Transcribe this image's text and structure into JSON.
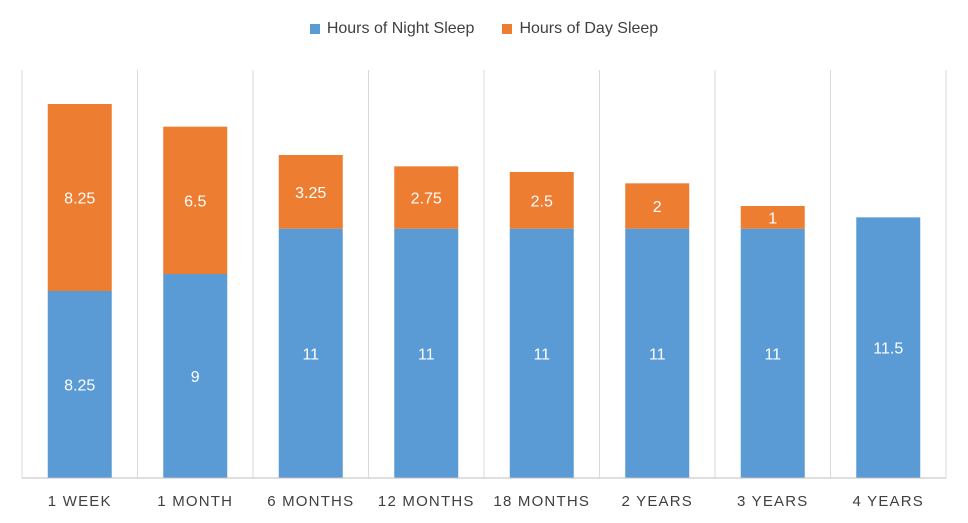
{
  "chart_data": {
    "type": "bar",
    "stacked": true,
    "title": "",
    "xlabel": "",
    "ylabel": "",
    "ylim": [
      0,
      18
    ],
    "legend_position": "top-center",
    "categories": [
      "1 WEEK",
      "1 MONTH",
      "6 MONTHS",
      "12 MONTHS",
      "18 MONTHS",
      "2 YEARS",
      "3 YEARS",
      "4 YEARS"
    ],
    "series": [
      {
        "name": "Hours of Night Sleep",
        "color": "#5B9BD5",
        "values": [
          8.25,
          9,
          11,
          11,
          11,
          11,
          11,
          11.5
        ],
        "labels": [
          "8.25",
          "9",
          "11",
          "11",
          "11",
          "11",
          "11",
          "11.5"
        ]
      },
      {
        "name": "Hours of Day Sleep",
        "color": "#ED7D31",
        "values": [
          8.25,
          6.5,
          3.25,
          2.75,
          2.5,
          2,
          1,
          0
        ],
        "labels": [
          "8.25",
          "6.5",
          "3.25",
          "2.75",
          "2.5",
          "2",
          "1",
          ""
        ]
      }
    ],
    "grid": {
      "vertical_separators": true,
      "horizontal": false
    },
    "grid_color": "#D9D9D9",
    "axis_color": "#BFBFBF"
  }
}
